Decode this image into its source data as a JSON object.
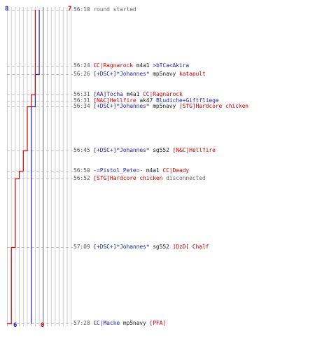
{
  "colors": {
    "blue_team": "#2222cc",
    "red_team": "#cc0000",
    "grid": "#c0c0c0",
    "center_line": "#808080",
    "dash": "#b0b0b0"
  },
  "scores": {
    "blue_start": "8",
    "red_start": "7",
    "blue_end": "6",
    "red_end": "0"
  },
  "chart_data": {
    "type": "line",
    "x_axis_label": "",
    "xlim": [
      0,
      16
    ],
    "blue_steps": [
      {
        "time": "56:10",
        "value": 8
      },
      {
        "time": "56:24",
        "value": 8
      },
      {
        "time": "56:26",
        "value": 7
      },
      {
        "time": "56:31",
        "value": 7
      },
      {
        "time": "56:34",
        "value": 6
      },
      {
        "time": "57:28",
        "value": 6
      }
    ],
    "red_steps": [
      {
        "time": "56:10",
        "value": 7
      },
      {
        "time": "56:26",
        "value": 7
      },
      {
        "time": "56:31",
        "value": 6
      },
      {
        "time": "56:34",
        "value": 5
      },
      {
        "time": "56:45",
        "value": 4
      },
      {
        "time": "56:50",
        "value": 3
      },
      {
        "time": "56:52",
        "value": 2
      },
      {
        "time": "57:09",
        "value": 1
      },
      {
        "time": "57:28",
        "value": 0
      }
    ]
  },
  "events": [
    {
      "time": "56:10",
      "parts": [
        {
          "text": "round started",
          "team": "gray"
        }
      ]
    },
    {
      "time": "56:24",
      "parts": [
        {
          "text": "CC|Ragnarock",
          "team": "red"
        },
        {
          "text": " m4a1 ",
          "team": "black"
        },
        {
          "text": ">bTCa<Akira",
          "team": "blue"
        }
      ]
    },
    {
      "time": "56:26",
      "parts": [
        {
          "text": "[+DSC+]*Johannes*",
          "team": "blue"
        },
        {
          "text": " mp5navy ",
          "team": "black"
        },
        {
          "text": "katapult",
          "team": "red"
        }
      ]
    },
    {
      "time": "56:31",
      "parts": [
        {
          "text": "[AA]Tocha",
          "team": "blue"
        },
        {
          "text": " m4a1 ",
          "team": "black"
        },
        {
          "text": "CC|Ragnarock",
          "team": "red"
        }
      ]
    },
    {
      "time": "56:31",
      "parts": [
        {
          "text": "[N&C]Hellfire",
          "team": "red"
        },
        {
          "text": " ak47 ",
          "team": "black"
        },
        {
          "text": "Bludiche+Giftfliege",
          "team": "blue"
        }
      ]
    },
    {
      "time": "56:34",
      "parts": [
        {
          "text": "[+DSC+]*Johannes*",
          "team": "blue"
        },
        {
          "text": " mp5navy ",
          "team": "black"
        },
        {
          "text": "[SfG]Hardcore chicken",
          "team": "red"
        }
      ]
    },
    {
      "time": "56:45",
      "parts": [
        {
          "text": "[+DSC+]*Johannes*",
          "team": "blue"
        },
        {
          "text": " sg552 ",
          "team": "black"
        },
        {
          "text": "[N&C]Hellfire",
          "team": "red"
        }
      ]
    },
    {
      "time": "56:50",
      "parts": [
        {
          "text": "-=Pistol_Pete=-",
          "team": "blue"
        },
        {
          "text": " m4a1 ",
          "team": "black"
        },
        {
          "text": "CC|Deady",
          "team": "red"
        }
      ]
    },
    {
      "time": "56:52",
      "parts": [
        {
          "text": "[SfG]Hardcore chicken",
          "team": "red"
        },
        {
          "text": " disconnected",
          "team": "gray"
        }
      ]
    },
    {
      "time": "57:09",
      "parts": [
        {
          "text": "[+DSC+]*Johannes*",
          "team": "blue"
        },
        {
          "text": " sg552 ",
          "team": "black"
        },
        {
          "text": "]DzD[ Chalf",
          "team": "red"
        }
      ]
    },
    {
      "time": "57:28",
      "parts": [
        {
          "text": "CC|Macke",
          "team": "blue"
        },
        {
          "text": " mp5navy ",
          "team": "black"
        },
        {
          "text": "[PFA]",
          "team": "red"
        }
      ]
    }
  ]
}
